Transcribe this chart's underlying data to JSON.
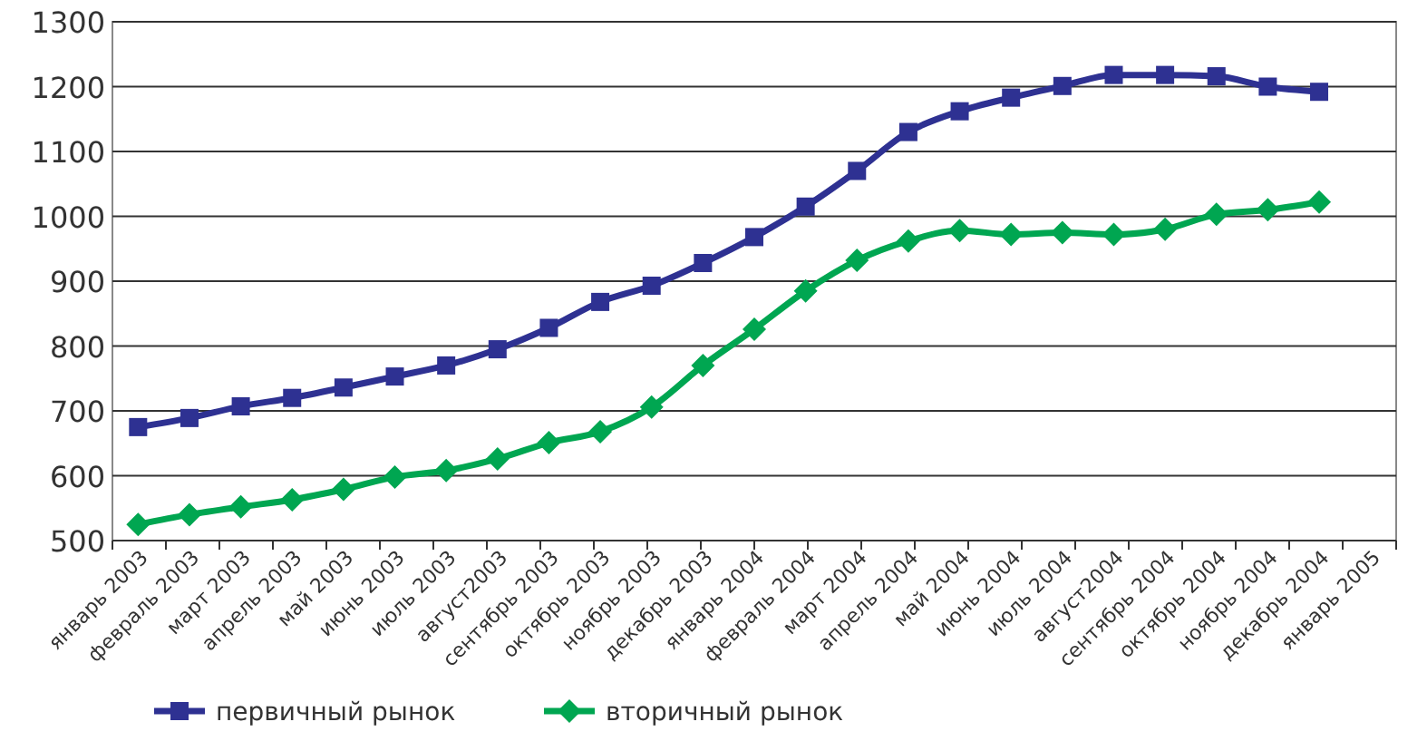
{
  "chart_data": {
    "type": "line",
    "categories": [
      "январь 2003",
      "февраль 2003",
      "март 2003",
      "апрель 2003",
      "май 2003",
      "июнь 2003",
      "июль 2003",
      "август2003",
      "сентябрь 2003",
      "октябрь 2003",
      "ноябрь 2003",
      "декабрь 2003",
      "январь 2004",
      "февраль 2004",
      "март 2004",
      "апрель 2004",
      "май 2004",
      "июнь 2004",
      "июль 2004",
      "август2004",
      "сентябрь 2004",
      "октябрь 2004",
      "ноябрь 2004",
      "декабрь 2004",
      "январь 2005"
    ],
    "series": [
      {
        "name": "первичный рынок",
        "color": "#2e3192",
        "marker": "square",
        "values": [
          675,
          689,
          707,
          720,
          736,
          753,
          770,
          795,
          828,
          868,
          893,
          928,
          968,
          1015,
          1070,
          1130,
          1162,
          1183,
          1201,
          1218,
          1218,
          1216,
          1200,
          1192,
          null
        ]
      },
      {
        "name": "вторичный рынок",
        "color": "#00a651",
        "marker": "diamond",
        "values": [
          525,
          540,
          552,
          563,
          579,
          598,
          608,
          626,
          651,
          668,
          706,
          770,
          826,
          885,
          932,
          962,
          978,
          972,
          975,
          972,
          980,
          1003,
          1010,
          1022,
          null
        ]
      }
    ],
    "ylim": [
      500,
      1300
    ],
    "yticks": [
      500,
      600,
      700,
      800,
      900,
      1000,
      1100,
      1200,
      1300
    ],
    "grid": "y",
    "legend": "bottom"
  }
}
